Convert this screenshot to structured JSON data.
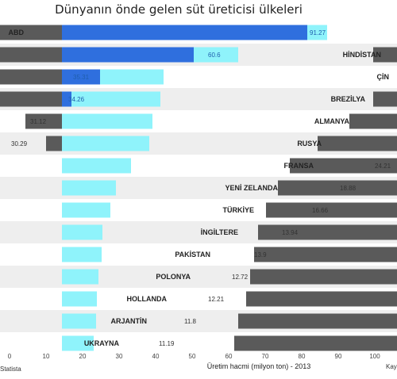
{
  "chart_data": {
    "type": "bar",
    "title": "Dünyanın önde gelen süt üreticisi ülkeleri",
    "xlabel": "Üretim hacmi (milyon ton) - 2013",
    "source_left": "Statista",
    "source_right": "Kaynak",
    "categories": [
      "ABD",
      "HİNDİSTAN",
      "ÇİN",
      "BREZİLYA",
      "ALMANYA",
      "RUSYA",
      "FRANSA",
      "YENİ ZELANDA",
      "TÜRKİYE",
      "İNGİLTERE",
      "PAKİSTAN",
      "POLONYA",
      "HOLLANDA",
      "ARJANTİN",
      "UKRAYNA"
    ],
    "values": [
      91.27,
      60.6,
      35.31,
      34.26,
      31.12,
      30.29,
      24.21,
      18.88,
      16.66,
      13.94,
      13.9,
      12.72,
      12.21,
      11.8,
      11.19
    ],
    "value_labels": [
      "91.27",
      "60.6",
      "35.31",
      "34.26",
      "31.12",
      "30.29",
      "24.21",
      "18.88",
      "16.66",
      "13.94",
      "13.9",
      "12.72",
      "12.21",
      "11.8",
      "11.19"
    ],
    "xlim": [
      0,
      100
    ],
    "colors": {
      "primary": "#2f6fde",
      "highlight": "#8ff3fb",
      "dark": "#5a5a5a",
      "band": "#eeeeee"
    }
  }
}
